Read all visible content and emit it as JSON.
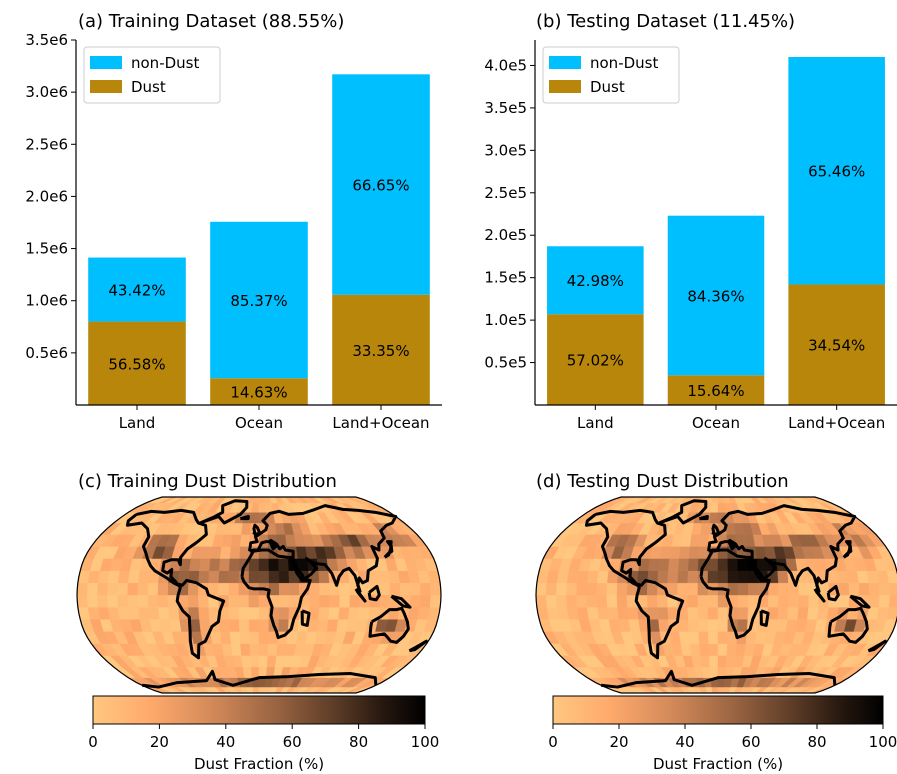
{
  "colors": {
    "non_dust": "#00bfff",
    "dust": "#b8860b",
    "cmap_stops": [
      "#ffc77f",
      "#ffaa6c",
      "#d58b5a",
      "#9a6441",
      "#5f3e28",
      "#24160e",
      "#000000"
    ]
  },
  "chart_data": [
    {
      "type": "bar",
      "title": "(a) Training Dataset (88.55%)",
      "categories": [
        "Land",
        "Ocean",
        "Land+Ocean"
      ],
      "stacked": true,
      "series": [
        {
          "name": "Dust",
          "values": [
            800000,
            257000,
            1057000
          ],
          "labels": [
            "56.58%",
            "14.63%",
            "33.35%"
          ]
        },
        {
          "name": "non-Dust",
          "values": [
            614000,
            1500000,
            2114000
          ],
          "labels": [
            "43.42%",
            "85.37%",
            "66.65%"
          ]
        }
      ],
      "ylim": [
        0,
        3500000
      ],
      "yticks": [
        500000,
        1000000,
        1500000,
        2000000,
        2500000,
        3000000,
        3500000
      ],
      "ytick_labels": [
        "0.5e6",
        "1.0e6",
        "1.5e6",
        "2.0e6",
        "2.5e6",
        "3.0e6",
        "3.5e6"
      ],
      "legend": "top-left",
      "legend_entries": [
        "non-Dust",
        "Dust"
      ]
    },
    {
      "type": "bar",
      "title": "(b) Testing Dataset (11.45%)",
      "categories": [
        "Land",
        "Ocean",
        "Land+Ocean"
      ],
      "stacked": true,
      "series": [
        {
          "name": "Dust",
          "values": [
            107000,
            35000,
            142000
          ],
          "labels": [
            "57.02%",
            "15.64%",
            "34.54%"
          ]
        },
        {
          "name": "non-Dust",
          "values": [
            80000,
            188000,
            268000
          ],
          "labels": [
            "42.98%",
            "84.36%",
            "65.46%"
          ]
        }
      ],
      "ylim": [
        0,
        430000
      ],
      "yticks": [
        50000,
        100000,
        150000,
        200000,
        250000,
        300000,
        350000,
        400000
      ],
      "ytick_labels": [
        "0.5e5",
        "1.0e5",
        "1.5e5",
        "2.0e5",
        "2.5e5",
        "3.0e5",
        "3.5e5",
        "4.0e5"
      ],
      "legend": "top-left",
      "legend_entries": [
        "non-Dust",
        "Dust"
      ]
    },
    {
      "type": "heatmap",
      "title": "(c) Training Dust Distribution",
      "projection": "Robinson",
      "colorbar": {
        "label": "Dust Fraction (%)",
        "ticks": [
          "0",
          "20",
          "40",
          "60",
          "80",
          "100"
        ],
        "range": [
          0,
          100
        ]
      }
    },
    {
      "type": "heatmap",
      "title": "(d) Testing Dust Distribution",
      "projection": "Robinson",
      "colorbar": {
        "label": "Dust Fraction (%)",
        "ticks": [
          "0",
          "20",
          "40",
          "60",
          "80",
          "100"
        ],
        "range": [
          0,
          100
        ]
      }
    }
  ]
}
